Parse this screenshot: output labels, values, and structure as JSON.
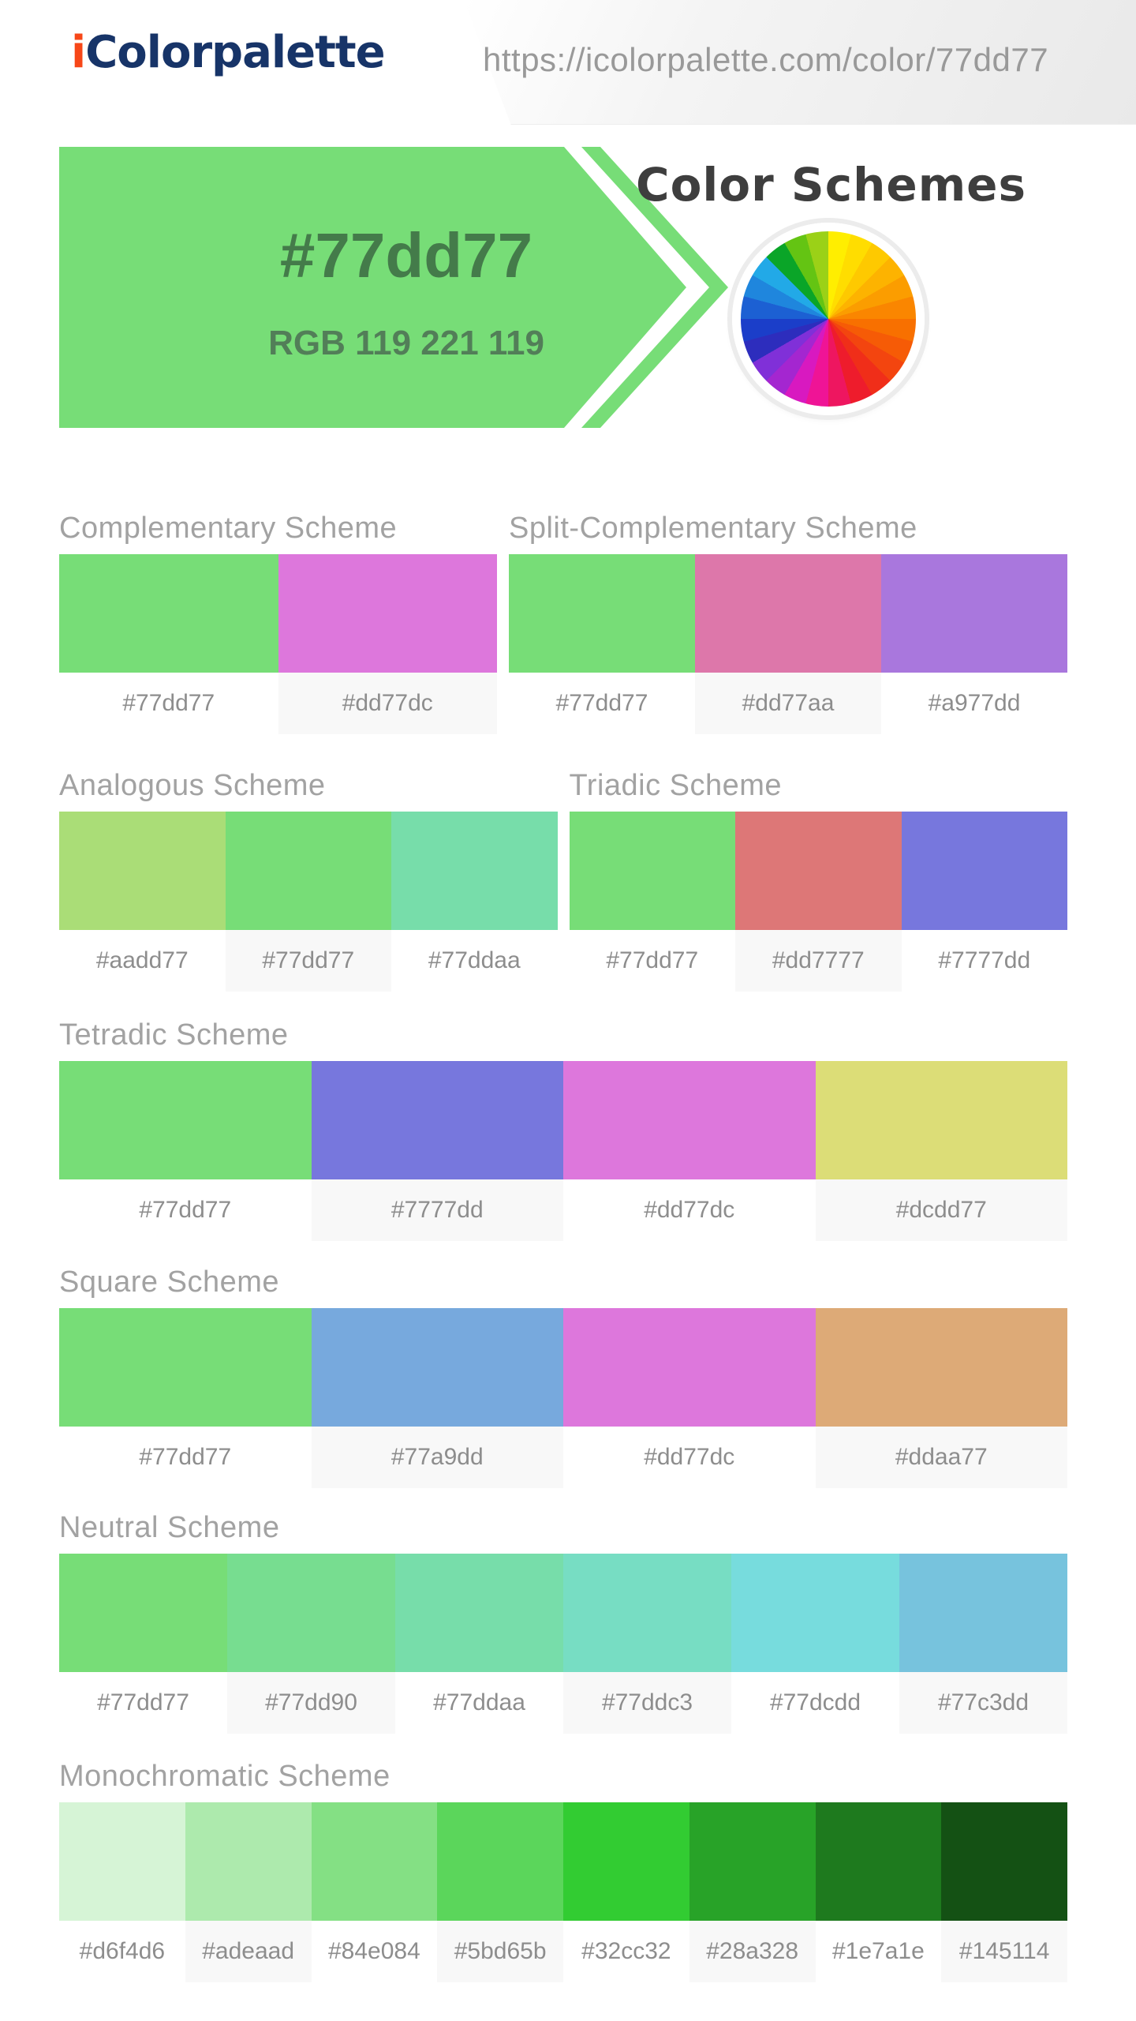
{
  "header": {
    "logo_prefix": "i",
    "logo_rest": "Colorpalette",
    "logo_prefix_color": "#f74718",
    "logo_rest_color": "#173468",
    "url": "https://icolorpalette.com/color/77dd77"
  },
  "hero": {
    "hex": "#77dd77",
    "rgb_label": "RGB 119 221 119",
    "banner_color": "#77dd77",
    "title": "Color Schemes"
  },
  "color_wheel": {
    "colors": [
      "#ffee00",
      "#ffdd00",
      "#fec900",
      "#fdb300",
      "#fb9d00",
      "#fa8600",
      "#f87000",
      "#f65b06",
      "#f3450f",
      "#f02e19",
      "#ee1c2c",
      "#ee1660",
      "#ef1496",
      "#d819c0",
      "#a426d0",
      "#8030d8",
      "#2d2dbd",
      "#1b3ec9",
      "#1c60d3",
      "#1f86dd",
      "#22a9e7",
      "#0aa528",
      "#64c413",
      "#9bd117"
    ]
  },
  "schemes": [
    {
      "title": "Complementary Scheme",
      "swatches": [
        "#77dd77",
        "#dd77dc"
      ]
    },
    {
      "title": "Split-Complementary Scheme",
      "swatches": [
        "#77dd77",
        "#dd77aa",
        "#a977dd"
      ]
    },
    {
      "title": "Analogous Scheme",
      "swatches": [
        "#aadd77",
        "#77dd77",
        "#77ddaa"
      ]
    },
    {
      "title": "Triadic Scheme",
      "swatches": [
        "#77dd77",
        "#dd7777",
        "#7777dd"
      ]
    },
    {
      "title": "Tetradic Scheme",
      "swatches": [
        "#77dd77",
        "#7777dd",
        "#dd77dc",
        "#dcdd77"
      ]
    },
    {
      "title": "Square Scheme",
      "swatches": [
        "#77dd77",
        "#77a9dd",
        "#dd77dc",
        "#ddaa77"
      ]
    },
    {
      "title": "Neutral Scheme",
      "swatches": [
        "#77dd77",
        "#77dd90",
        "#77ddaa",
        "#77ddc3",
        "#77dcdd",
        "#77c3dd"
      ]
    },
    {
      "title": "Monochromatic Scheme",
      "swatches": [
        "#d6f4d6",
        "#adeaad",
        "#84e084",
        "#5bd65b",
        "#32cc32",
        "#28a328",
        "#1e7a1e",
        "#145114"
      ]
    }
  ]
}
